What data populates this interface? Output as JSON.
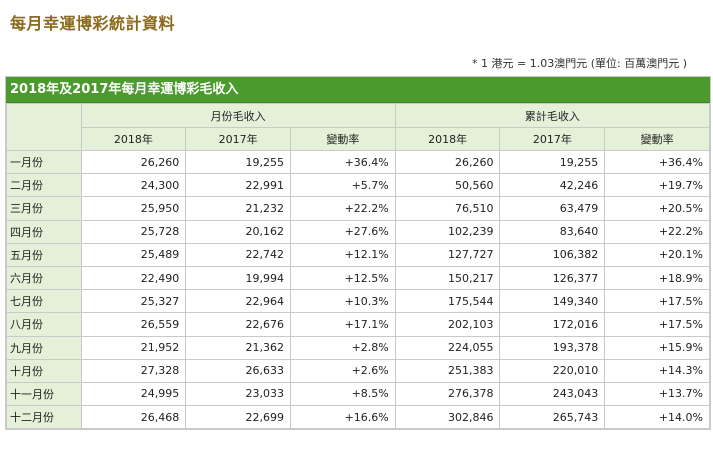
{
  "page_title": "每月幸運博彩統計資料",
  "note": "* 1 港元 = 1.03澳門元 (單位: 百萬澳門元 )",
  "table": {
    "caption": "2018年及2017年每月幸運博彩毛收入",
    "group_headers": [
      "月份毛收入",
      "累計毛收入"
    ],
    "sub_headers": [
      "2018年",
      "2017年",
      "變動率",
      "2018年",
      "2017年",
      "變動率"
    ],
    "rows": [
      {
        "month": "一月份",
        "m2018": "26,260",
        "m2017": "19,255",
        "mchg": "+36.4%",
        "c2018": "26,260",
        "c2017": "19,255",
        "cchg": "+36.4%"
      },
      {
        "month": "二月份",
        "m2018": "24,300",
        "m2017": "22,991",
        "mchg": "+5.7%",
        "c2018": "50,560",
        "c2017": "42,246",
        "cchg": "+19.7%"
      },
      {
        "month": "三月份",
        "m2018": "25,950",
        "m2017": "21,232",
        "mchg": "+22.2%",
        "c2018": "76,510",
        "c2017": "63,479",
        "cchg": "+20.5%"
      },
      {
        "month": "四月份",
        "m2018": "25,728",
        "m2017": "20,162",
        "mchg": "+27.6%",
        "c2018": "102,239",
        "c2017": "83,640",
        "cchg": "+22.2%"
      },
      {
        "month": "五月份",
        "m2018": "25,489",
        "m2017": "22,742",
        "mchg": "+12.1%",
        "c2018": "127,727",
        "c2017": "106,382",
        "cchg": "+20.1%"
      },
      {
        "month": "六月份",
        "m2018": "22,490",
        "m2017": "19,994",
        "mchg": "+12.5%",
        "c2018": "150,217",
        "c2017": "126,377",
        "cchg": "+18.9%"
      },
      {
        "month": "七月份",
        "m2018": "25,327",
        "m2017": "22,964",
        "mchg": "+10.3%",
        "c2018": "175,544",
        "c2017": "149,340",
        "cchg": "+17.5%"
      },
      {
        "month": "八月份",
        "m2018": "26,559",
        "m2017": "22,676",
        "mchg": "+17.1%",
        "c2018": "202,103",
        "c2017": "172,016",
        "cchg": "+17.5%"
      },
      {
        "month": "九月份",
        "m2018": "21,952",
        "m2017": "21,362",
        "mchg": "+2.8%",
        "c2018": "224,055",
        "c2017": "193,378",
        "cchg": "+15.9%"
      },
      {
        "month": "十月份",
        "m2018": "27,328",
        "m2017": "26,633",
        "mchg": "+2.6%",
        "c2018": "251,383",
        "c2017": "220,010",
        "cchg": "+14.3%"
      },
      {
        "month": "十一月份",
        "m2018": "24,995",
        "m2017": "23,033",
        "mchg": "+8.5%",
        "c2018": "276,378",
        "c2017": "243,043",
        "cchg": "+13.7%"
      },
      {
        "month": "十二月份",
        "m2018": "26,468",
        "m2017": "22,699",
        "mchg": "+16.6%",
        "c2018": "302,846",
        "c2017": "265,743",
        "cchg": "+14.0%"
      }
    ]
  },
  "colors": {
    "title": "#8b6a1f",
    "caption_bg": "#4b9a2d",
    "header_bg": "#e4f0d8",
    "border": "#c9c9c9"
  }
}
